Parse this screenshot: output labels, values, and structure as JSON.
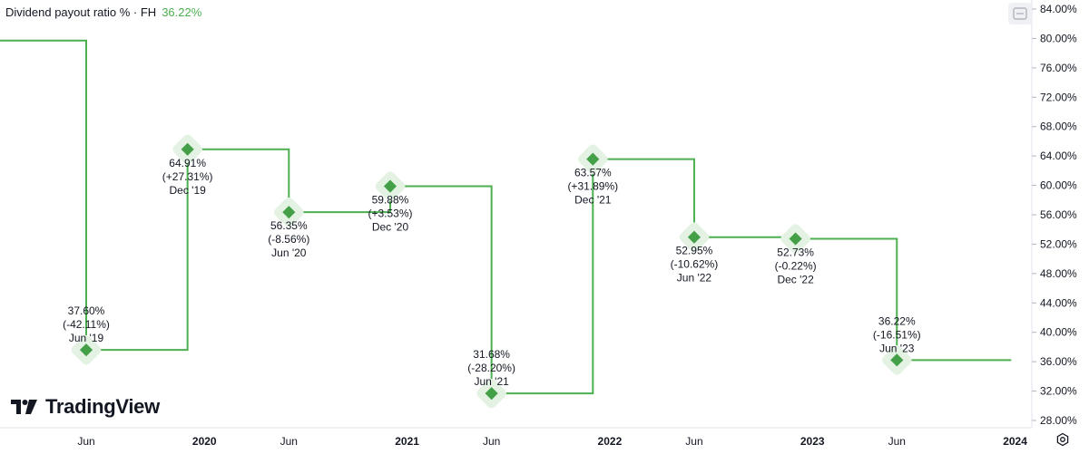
{
  "legend": {
    "label": "Dividend payout ratio % · FH",
    "value": "36.22%"
  },
  "logo": {
    "text": "TradingView"
  },
  "colors": {
    "line": "#4caf50",
    "marker": "#43a047",
    "halo": "#e4f2e4"
  },
  "icons": {
    "toggle": "chart-toggle-icon",
    "settings": "settings-gear-icon",
    "logo": "tradingview-logo-icon"
  },
  "chart_data": {
    "type": "line",
    "step": true,
    "grid": false,
    "ylim": [
      28,
      84
    ],
    "y_ticks": [
      "28.00%",
      "32.00%",
      "36.00%",
      "40.00%",
      "44.00%",
      "48.00%",
      "52.00%",
      "56.00%",
      "60.00%",
      "64.00%",
      "68.00%",
      "72.00%",
      "76.00%",
      "80.00%",
      "84.00%"
    ],
    "x_ticks": [
      {
        "label": "Jun",
        "date": "2019-06",
        "year": false
      },
      {
        "label": "2020",
        "date": "2020-01",
        "year": true
      },
      {
        "label": "Jun",
        "date": "2020-06",
        "year": false
      },
      {
        "label": "2021",
        "date": "2021-01",
        "year": true
      },
      {
        "label": "Jun",
        "date": "2021-06",
        "year": false
      },
      {
        "label": "2022",
        "date": "2022-01",
        "year": true
      },
      {
        "label": "Jun",
        "date": "2022-06",
        "year": false
      },
      {
        "label": "2023",
        "date": "2023-01",
        "year": true
      },
      {
        "label": "Jun",
        "date": "2023-06",
        "year": false
      },
      {
        "label": "2024",
        "date": "2024-01",
        "year": true
      }
    ],
    "prior_value": 79.71,
    "points": [
      {
        "date": "2019-06",
        "value": 37.6,
        "value_label": "37.60%",
        "change_label": "(-42.11%)",
        "period_label": "Jun '19",
        "label_pos": "above"
      },
      {
        "date": "2019-12",
        "value": 64.91,
        "value_label": "64.91%",
        "change_label": "(+27.31%)",
        "period_label": "Dec '19",
        "label_pos": "below"
      },
      {
        "date": "2020-06",
        "value": 56.35,
        "value_label": "56.35%",
        "change_label": "(-8.56%)",
        "period_label": "Jun '20",
        "label_pos": "below"
      },
      {
        "date": "2020-12",
        "value": 59.88,
        "value_label": "59.88%",
        "change_label": "(+3.53%)",
        "period_label": "Dec '20",
        "label_pos": "below"
      },
      {
        "date": "2021-06",
        "value": 31.68,
        "value_label": "31.68%",
        "change_label": "(-28.20%)",
        "period_label": "Jun '21",
        "label_pos": "above"
      },
      {
        "date": "2021-12",
        "value": 63.57,
        "value_label": "63.57%",
        "change_label": "(+31.89%)",
        "period_label": "Dec '21",
        "label_pos": "below"
      },
      {
        "date": "2022-06",
        "value": 52.95,
        "value_label": "52.95%",
        "change_label": "(-10.62%)",
        "period_label": "Jun '22",
        "label_pos": "below"
      },
      {
        "date": "2022-12",
        "value": 52.73,
        "value_label": "52.73%",
        "change_label": "(-0.22%)",
        "period_label": "Dec '22",
        "label_pos": "below"
      },
      {
        "date": "2023-06",
        "value": 36.22,
        "value_label": "36.22%",
        "change_label": "(-16.51%)",
        "period_label": "Jun '23",
        "label_pos": "above"
      }
    ]
  }
}
